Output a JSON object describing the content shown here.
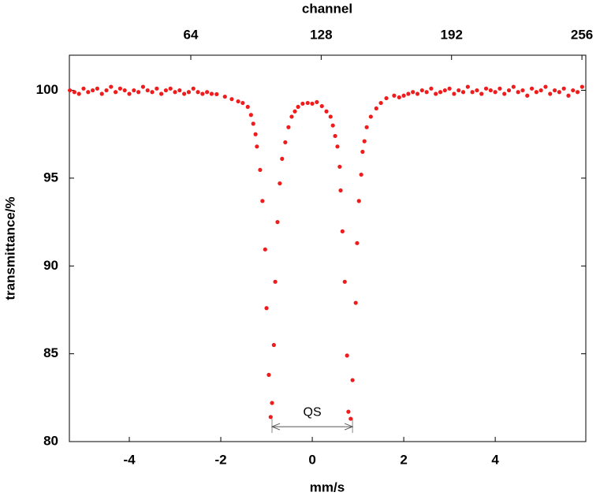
{
  "chart_data": {
    "type": "scatter",
    "x_label": "mm/s",
    "x2_label": "channel",
    "y_label": "transmittance/%",
    "xlim": [
      -5.31,
      5.98
    ],
    "xticks": [
      -4,
      -2,
      0,
      2,
      4
    ],
    "x2lim": [
      4.4,
      257.9
    ],
    "x2ticks": [
      64,
      128,
      192,
      256
    ],
    "ylim": [
      80,
      102
    ],
    "yticks": [
      80,
      85,
      90,
      95,
      100
    ],
    "grid": false,
    "color": "#ee1c1c",
    "annotation": {
      "text": "QS",
      "x": [
        -0.88,
        0.88
      ],
      "y": 80.85
    },
    "x": [
      -5.3,
      -5.2,
      -5.1,
      -5.0,
      -4.9,
      -4.8,
      -4.7,
      -4.6,
      -4.5,
      -4.4,
      -4.3,
      -4.2,
      -4.1,
      -4.0,
      -3.9,
      -3.8,
      -3.7,
      -3.6,
      -3.5,
      -3.4,
      -3.3,
      -3.2,
      -3.1,
      -3.0,
      -2.9,
      -2.8,
      -2.7,
      -2.6,
      -2.5,
      -2.4,
      -2.3,
      -2.2,
      -2.09,
      -1.91,
      -1.76,
      -1.62,
      -1.52,
      -1.41,
      -1.34,
      -1.29,
      -1.24,
      -1.21,
      -1.14,
      -1.09,
      -1.03,
      -1.0,
      -0.95,
      -0.91,
      -0.88,
      -0.84,
      -0.81,
      -0.76,
      -0.71,
      -0.66,
      -0.59,
      -0.52,
      -0.45,
      -0.38,
      -0.31,
      -0.21,
      -0.1,
      0,
      0.1,
      0.21,
      0.31,
      0.4,
      0.45,
      0.5,
      0.55,
      0.6,
      0.62,
      0.66,
      0.71,
      0.76,
      0.79,
      0.84,
      0.88,
      0.95,
      0.98,
      1.02,
      1.07,
      1.1,
      1.14,
      1.19,
      1.28,
      1.4,
      1.5,
      1.62,
      1.79,
      1.9,
      2.0,
      2.1,
      2.2,
      2.3,
      2.4,
      2.5,
      2.6,
      2.7,
      2.8,
      2.9,
      3.0,
      3.1,
      3.2,
      3.3,
      3.4,
      3.5,
      3.6,
      3.7,
      3.8,
      3.9,
      4.0,
      4.1,
      4.2,
      4.3,
      4.4,
      4.5,
      4.6,
      4.7,
      4.8,
      4.9,
      5.0,
      5.1,
      5.2,
      5.3,
      5.4,
      5.5,
      5.6,
      5.7,
      5.8,
      5.9
    ],
    "values": [
      100.0,
      99.9,
      99.8,
      100.1,
      99.9,
      100.0,
      100.1,
      99.8,
      100.0,
      100.2,
      99.9,
      100.1,
      100.0,
      99.8,
      100.0,
      99.9,
      100.2,
      100.0,
      99.9,
      100.1,
      99.8,
      100.0,
      100.1,
      99.9,
      100.0,
      99.8,
      99.9,
      100.1,
      99.9,
      99.8,
      99.9,
      99.8,
      99.78,
      99.64,
      99.5,
      99.37,
      99.28,
      99.06,
      98.6,
      98.1,
      97.5,
      96.8,
      95.47,
      93.7,
      90.94,
      87.6,
      83.8,
      81.4,
      82.2,
      85.5,
      89.1,
      92.5,
      94.7,
      96.1,
      97.04,
      97.9,
      98.5,
      98.8,
      99.06,
      99.24,
      99.28,
      99.24,
      99.33,
      99.1,
      98.8,
      98.5,
      98.0,
      97.4,
      96.8,
      95.65,
      94.3,
      91.97,
      89.1,
      84.9,
      81.7,
      81.3,
      83.5,
      87.9,
      91.3,
      93.7,
      95.2,
      96.5,
      97.1,
      97.9,
      98.5,
      98.97,
      99.28,
      99.55,
      99.7,
      99.6,
      99.7,
      99.8,
      99.9,
      99.8,
      100.0,
      99.9,
      100.1,
      99.8,
      99.9,
      100.0,
      100.1,
      99.8,
      100.0,
      99.9,
      100.2,
      99.9,
      100.0,
      99.8,
      100.1,
      100.0,
      99.9,
      100.1,
      99.8,
      100.0,
      100.2,
      99.9,
      100.0,
      99.7,
      100.1,
      99.9,
      100.0,
      100.2,
      99.8,
      100.0,
      99.9,
      100.1,
      99.7,
      100.0,
      99.9,
      100.2
    ]
  }
}
